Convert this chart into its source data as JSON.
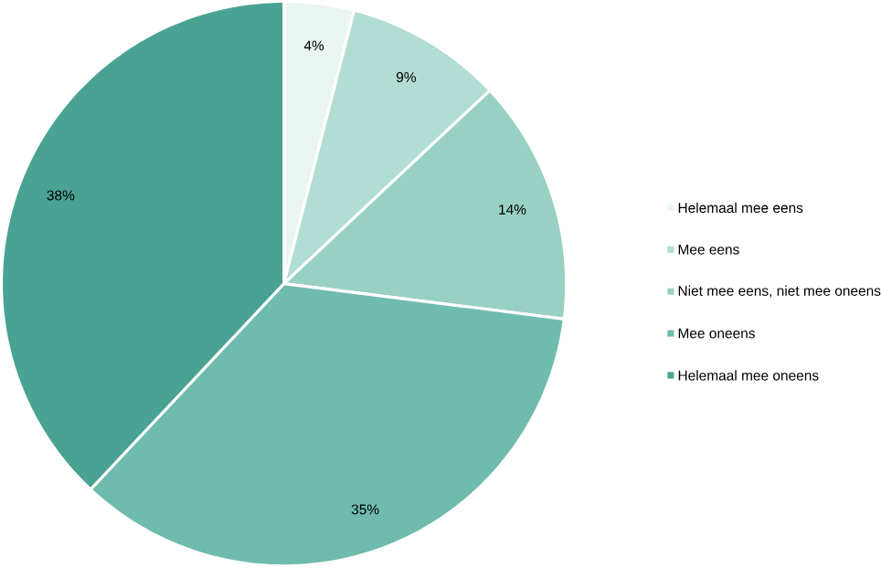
{
  "chart_data": {
    "type": "pie",
    "categories": [
      "Helemaal mee eens",
      "Mee eens",
      "Niet mee eens, niet mee oneens",
      "Mee oneens",
      "Helemaal mee oneens"
    ],
    "values": [
      4,
      9,
      14,
      35,
      38
    ],
    "value_labels": [
      "4%",
      "9%",
      "14%",
      "35%",
      "38%"
    ],
    "colors": [
      "#eaf5f2",
      "#b2ddd4",
      "#99d0c4",
      "#6fbbad",
      "#4aa292"
    ],
    "legend": "right"
  }
}
